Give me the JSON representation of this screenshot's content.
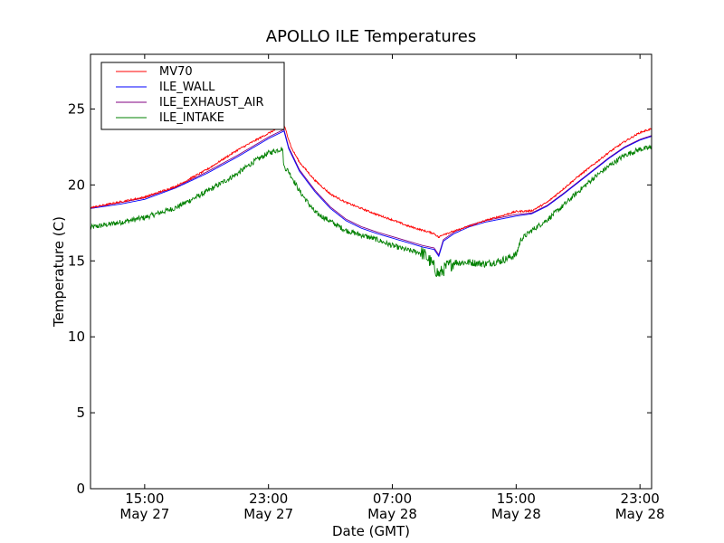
{
  "chart_data": {
    "type": "line",
    "title": "APOLLO ILE Temperatures",
    "xlabel": "Date (GMT)",
    "ylabel": "Temperature (C)",
    "xunit": "hours since May 27 00:00 GMT",
    "xlim": [
      11.5,
      47.75
    ],
    "ylim": [
      0,
      28.6
    ],
    "grid": false,
    "legend_placement": "top-left",
    "x_ticks": [
      {
        "value": 15,
        "time": "15:00",
        "date": "May 27"
      },
      {
        "value": 23,
        "time": "23:00",
        "date": "May 27"
      },
      {
        "value": 31,
        "time": "07:00",
        "date": "May 28"
      },
      {
        "value": 39,
        "time": "15:00",
        "date": "May 28"
      },
      {
        "value": 47,
        "time": "23:00",
        "date": "May 28"
      }
    ],
    "y_ticks": [
      {
        "value": 0,
        "label": "0"
      },
      {
        "value": 5,
        "label": "5"
      },
      {
        "value": 10,
        "label": "10"
      },
      {
        "value": 15,
        "label": "15"
      },
      {
        "value": 20,
        "label": "20"
      },
      {
        "value": 25,
        "label": "25"
      }
    ],
    "series": [
      {
        "name": "MV70",
        "color": "#ff0000",
        "noise": 0.12,
        "points": [
          [
            11.5,
            18.5
          ],
          [
            13.5,
            18.9
          ],
          [
            15,
            19.2
          ],
          [
            17,
            19.9
          ],
          [
            19,
            21.0
          ],
          [
            21,
            22.3
          ],
          [
            23,
            23.4
          ],
          [
            24,
            23.95
          ],
          [
            24.5,
            22.4
          ],
          [
            25,
            21.5
          ],
          [
            26,
            20.3
          ],
          [
            27,
            19.4
          ],
          [
            28,
            18.85
          ],
          [
            29,
            18.45
          ],
          [
            30,
            18.05
          ],
          [
            31,
            17.7
          ],
          [
            32,
            17.3
          ],
          [
            33,
            17.0
          ],
          [
            33.7,
            16.8
          ],
          [
            34,
            16.55
          ],
          [
            34.3,
            16.75
          ],
          [
            35,
            16.95
          ],
          [
            36,
            17.3
          ],
          [
            37,
            17.65
          ],
          [
            38,
            17.95
          ],
          [
            39,
            18.25
          ],
          [
            40,
            18.3
          ],
          [
            41,
            18.85
          ],
          [
            42,
            19.7
          ],
          [
            43,
            20.55
          ],
          [
            44,
            21.35
          ],
          [
            45,
            22.15
          ],
          [
            46,
            22.85
          ],
          [
            47,
            23.45
          ],
          [
            47.75,
            23.7
          ]
        ]
      },
      {
        "name": "ILE_WALL",
        "color": "#0000ff",
        "noise": 0,
        "points": [
          [
            11.5,
            18.45
          ],
          [
            13.5,
            18.75
          ],
          [
            15,
            19.05
          ],
          [
            17,
            19.8
          ],
          [
            19,
            20.75
          ],
          [
            21,
            21.85
          ],
          [
            23,
            23.05
          ],
          [
            24,
            23.55
          ],
          [
            24.3,
            22.4
          ],
          [
            25,
            20.9
          ],
          [
            26,
            19.55
          ],
          [
            27,
            18.45
          ],
          [
            28,
            17.65
          ],
          [
            29,
            17.15
          ],
          [
            30,
            16.8
          ],
          [
            31,
            16.5
          ],
          [
            32,
            16.2
          ],
          [
            33,
            15.9
          ],
          [
            33.7,
            15.75
          ],
          [
            34,
            15.3
          ],
          [
            34.3,
            16.3
          ],
          [
            35,
            16.8
          ],
          [
            36,
            17.25
          ],
          [
            37,
            17.55
          ],
          [
            38,
            17.75
          ],
          [
            39,
            17.95
          ],
          [
            40,
            18.1
          ],
          [
            41,
            18.6
          ],
          [
            42,
            19.35
          ],
          [
            43,
            20.15
          ],
          [
            44,
            20.95
          ],
          [
            45,
            21.75
          ],
          [
            46,
            22.45
          ],
          [
            47,
            22.95
          ],
          [
            47.75,
            23.2
          ]
        ]
      },
      {
        "name": "ILE_EXHAUST_AIR",
        "color": "#800080",
        "noise": 0,
        "points": [
          [
            11.5,
            18.5
          ],
          [
            13.5,
            18.85
          ],
          [
            15,
            19.15
          ],
          [
            17,
            19.85
          ],
          [
            19,
            20.85
          ],
          [
            21,
            21.95
          ],
          [
            23,
            23.15
          ],
          [
            24,
            23.65
          ],
          [
            24.3,
            22.5
          ],
          [
            25,
            21.0
          ],
          [
            26,
            19.65
          ],
          [
            27,
            18.55
          ],
          [
            28,
            17.75
          ],
          [
            29,
            17.25
          ],
          [
            30,
            16.9
          ],
          [
            31,
            16.6
          ],
          [
            32,
            16.3
          ],
          [
            33,
            16.0
          ],
          [
            33.7,
            15.85
          ],
          [
            34,
            15.4
          ],
          [
            34.3,
            16.4
          ],
          [
            35,
            16.9
          ],
          [
            36,
            17.35
          ],
          [
            37,
            17.65
          ],
          [
            38,
            17.85
          ],
          [
            39,
            18.05
          ],
          [
            40,
            18.15
          ],
          [
            41,
            18.65
          ],
          [
            42,
            19.4
          ],
          [
            43,
            20.2
          ],
          [
            44,
            21.0
          ],
          [
            45,
            21.8
          ],
          [
            46,
            22.5
          ],
          [
            47,
            23.0
          ],
          [
            47.75,
            23.25
          ]
        ]
      },
      {
        "name": "ILE_INTAKE",
        "color": "#008000",
        "noise": 0.35,
        "points": [
          [
            11.5,
            17.2
          ],
          [
            13.5,
            17.55
          ],
          [
            15,
            17.85
          ],
          [
            17,
            18.5
          ],
          [
            19,
            19.55
          ],
          [
            21,
            20.75
          ],
          [
            22,
            21.5
          ],
          [
            23,
            22.1
          ],
          [
            23.9,
            22.4
          ],
          [
            24,
            21.2
          ],
          [
            24.3,
            20.9
          ],
          [
            25,
            19.6
          ],
          [
            26,
            18.2
          ],
          [
            27,
            17.6
          ],
          [
            28,
            17.0
          ],
          [
            29,
            16.7
          ],
          [
            30,
            16.4
          ],
          [
            31,
            16.0
          ],
          [
            32,
            15.7
          ],
          [
            33,
            15.5
          ],
          [
            33.5,
            14.9
          ],
          [
            34,
            14.1
          ],
          [
            34.5,
            14.6
          ],
          [
            35,
            14.9
          ],
          [
            36,
            14.9
          ],
          [
            37,
            14.8
          ],
          [
            38,
            15.0
          ],
          [
            39,
            15.4
          ],
          [
            39.3,
            16.4
          ],
          [
            40,
            17.0
          ],
          [
            41,
            17.7
          ],
          [
            42,
            18.6
          ],
          [
            43,
            19.55
          ],
          [
            44,
            20.45
          ],
          [
            45,
            21.25
          ],
          [
            46,
            21.95
          ],
          [
            47,
            22.35
          ],
          [
            47.75,
            22.45
          ]
        ]
      }
    ]
  }
}
